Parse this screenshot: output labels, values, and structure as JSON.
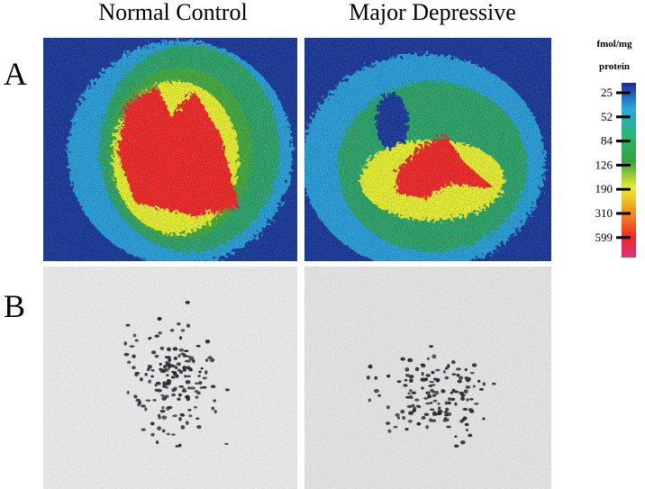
{
  "figure": {
    "columns": [
      "Normal Control",
      "Major Depressive"
    ],
    "rows": [
      "A",
      "B"
    ],
    "colorbar": {
      "unit": [
        "fmol/mg",
        "protein"
      ],
      "ticks": [
        25,
        52,
        84,
        126,
        190,
        310,
        599
      ]
    }
  }
}
